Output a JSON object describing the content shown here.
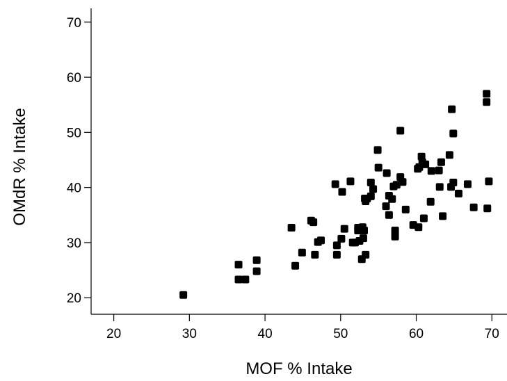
{
  "chart_data": {
    "type": "scatter",
    "title": "",
    "xlabel": "MOF % Intake",
    "ylabel": "OMdR % Intake",
    "xlim": [
      17,
      72
    ],
    "ylim": [
      17,
      72.5
    ],
    "xticks": [
      "20",
      "30",
      "40",
      "50",
      "60",
      "70"
    ],
    "yticks": [
      "20",
      "30",
      "40",
      "50",
      "60",
      "70"
    ],
    "grid": false,
    "legend": "none",
    "marker_color": "#000000",
    "points": [
      [
        29.2,
        20.5
      ],
      [
        36.5,
        26.0
      ],
      [
        36.5,
        23.3
      ],
      [
        37.4,
        23.3
      ],
      [
        38.9,
        26.8
      ],
      [
        38.9,
        24.8
      ],
      [
        43.5,
        32.7
      ],
      [
        44.0,
        25.8
      ],
      [
        44.9,
        28.2
      ],
      [
        46.1,
        34.0
      ],
      [
        46.4,
        33.7
      ],
      [
        46.6,
        27.8
      ],
      [
        47.0,
        30.1
      ],
      [
        47.4,
        30.4
      ],
      [
        49.3,
        40.6
      ],
      [
        49.5,
        29.5
      ],
      [
        49.5,
        27.8
      ],
      [
        50.1,
        30.7
      ],
      [
        50.2,
        39.2
      ],
      [
        50.5,
        32.5
      ],
      [
        51.3,
        41.1
      ],
      [
        51.6,
        30.0
      ],
      [
        51.9,
        30.0
      ],
      [
        52.3,
        32.7
      ],
      [
        52.3,
        32.2
      ],
      [
        52.5,
        30.3
      ],
      [
        52.8,
        27.0
      ],
      [
        52.9,
        32.8
      ],
      [
        53.0,
        30.8
      ],
      [
        53.1,
        32.2
      ],
      [
        53.2,
        38.0
      ],
      [
        53.3,
        27.8
      ],
      [
        53.3,
        37.5
      ],
      [
        53.5,
        38.0
      ],
      [
        54.0,
        40.9
      ],
      [
        54.0,
        38.4
      ],
      [
        54.3,
        39.7
      ],
      [
        54.9,
        46.8
      ],
      [
        55.0,
        43.6
      ],
      [
        56.0,
        36.6
      ],
      [
        56.1,
        42.6
      ],
      [
        56.4,
        38.5
      ],
      [
        56.4,
        35.0
      ],
      [
        56.8,
        37.9
      ],
      [
        57.0,
        40.2
      ],
      [
        57.2,
        31.1
      ],
      [
        57.2,
        32.2
      ],
      [
        57.4,
        40.5
      ],
      [
        57.9,
        50.3
      ],
      [
        57.9,
        41.9
      ],
      [
        58.2,
        41.0
      ],
      [
        58.6,
        36.0
      ],
      [
        59.6,
        33.2
      ],
      [
        60.2,
        43.4
      ],
      [
        60.3,
        32.8
      ],
      [
        60.4,
        43.7
      ],
      [
        60.7,
        45.6
      ],
      [
        60.8,
        44.6
      ],
      [
        61.0,
        34.4
      ],
      [
        61.2,
        44.2
      ],
      [
        61.9,
        37.4
      ],
      [
        62.0,
        43.0
      ],
      [
        63.0,
        43.1
      ],
      [
        63.1,
        40.1
      ],
      [
        63.3,
        44.6
      ],
      [
        63.5,
        34.8
      ],
      [
        64.4,
        45.9
      ],
      [
        64.6,
        40.1
      ],
      [
        64.7,
        54.2
      ],
      [
        64.9,
        49.8
      ],
      [
        64.9,
        40.9
      ],
      [
        65.6,
        38.9
      ],
      [
        66.8,
        40.6
      ],
      [
        67.6,
        36.4
      ],
      [
        69.3,
        57.0
      ],
      [
        69.3,
        55.5
      ],
      [
        69.4,
        36.2
      ],
      [
        69.6,
        41.1
      ]
    ]
  }
}
